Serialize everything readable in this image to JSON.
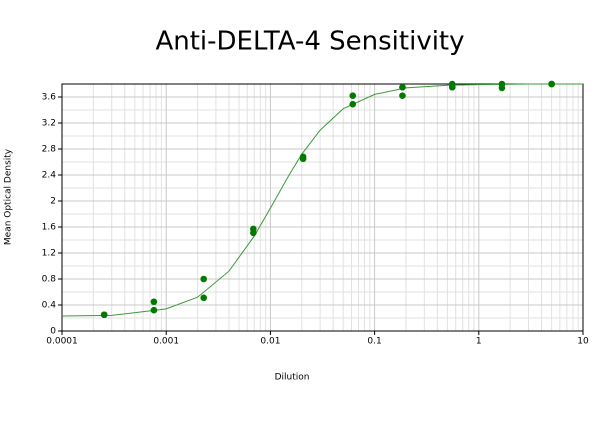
{
  "chart_data": {
    "type": "scatter",
    "title": "Anti-DELTA-4 Sensitivity",
    "x_label": "Dilution",
    "y_label": "Mean Optical Density",
    "x": [
      0.000254,
      0.000254,
      0.000762,
      0.000762,
      0.00229,
      0.00229,
      0.00686,
      0.00686,
      0.0206,
      0.0206,
      0.0617,
      0.0617,
      0.185,
      0.185,
      0.556,
      0.556,
      1.667,
      1.667,
      5,
      5
    ],
    "values": [
      0.25,
      0.25,
      0.45,
      0.32,
      0.8,
      0.51,
      1.57,
      1.51,
      2.68,
      2.65,
      3.62,
      3.49,
      3.75,
      3.62,
      3.8,
      3.75,
      3.8,
      3.74,
      3.8,
      3.8
    ],
    "color": "#007a00",
    "curve": {
      "x": [
        0.0001,
        0.0003,
        0.001,
        0.002,
        0.004,
        0.007,
        0.01,
        0.015,
        0.02,
        0.03,
        0.05,
        0.1,
        0.2,
        0.5,
        1,
        3,
        10
      ],
      "values": [
        0.23,
        0.24,
        0.34,
        0.52,
        0.92,
        1.46,
        1.89,
        2.39,
        2.72,
        3.09,
        3.42,
        3.64,
        3.74,
        3.78,
        3.79,
        3.8,
        3.8
      ],
      "color": "#3a9a3a"
    },
    "xscale": "log",
    "grid": true,
    "xlim": [
      0.0001,
      10
    ],
    "xticks": [
      0.0001,
      0.001,
      0.01,
      0.1,
      1,
      10
    ],
    "ylim": [
      0,
      3.8
    ],
    "yticks": [
      0,
      0.4,
      0.8,
      1.2,
      1.6,
      2,
      2.4,
      2.8,
      3.2,
      3.6
    ]
  }
}
